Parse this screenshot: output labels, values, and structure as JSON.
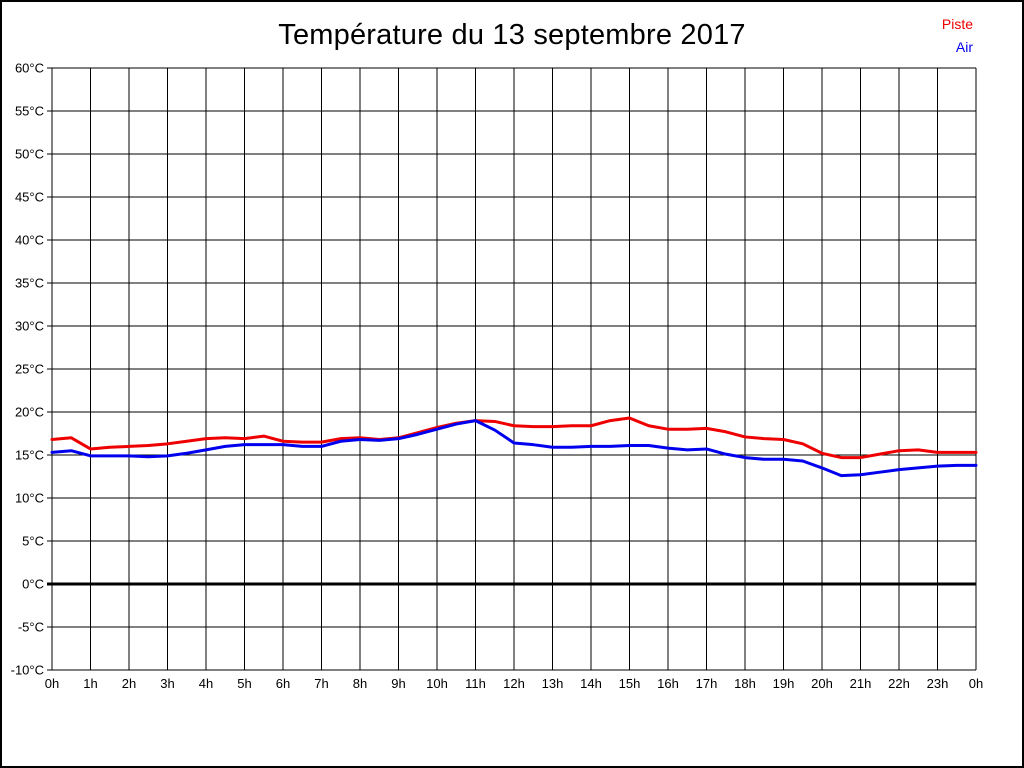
{
  "title": "Température du 13 septembre 2017",
  "legend": {
    "items": [
      {
        "label": "Piste",
        "color": "#ee0000"
      },
      {
        "label": "Air",
        "color": "#0000ee"
      }
    ],
    "position": "top-right"
  },
  "chart_data": {
    "type": "line",
    "title": "Température du 13 septembre 2017",
    "xlabel": "",
    "ylabel": "",
    "xlim": [
      0,
      24
    ],
    "ylim": [
      -10,
      60
    ],
    "x_step": 1,
    "y_step": 5,
    "grid": true,
    "zero_line_thick": true,
    "legend_position": "top-right",
    "x_tick_labels": [
      "0h",
      "1h",
      "2h",
      "3h",
      "4h",
      "5h",
      "6h",
      "7h",
      "8h",
      "9h",
      "10h",
      "11h",
      "12h",
      "13h",
      "14h",
      "15h",
      "16h",
      "17h",
      "18h",
      "19h",
      "20h",
      "21h",
      "22h",
      "23h",
      "0h"
    ],
    "y_tick_labels": [
      "60°C",
      "55°C",
      "50°C",
      "45°C",
      "40°C",
      "35°C",
      "30°C",
      "25°C",
      "20°C",
      "15°C",
      "10°C",
      "5°C",
      "0°C",
      "-5°C",
      "-10°C"
    ],
    "x": [
      0,
      0.5,
      1,
      1.5,
      2,
      2.5,
      3,
      3.5,
      4,
      4.5,
      5,
      5.5,
      6,
      6.5,
      7,
      7.5,
      8,
      8.5,
      9,
      9.5,
      10,
      10.5,
      11,
      11.5,
      12,
      12.5,
      13,
      13.5,
      14,
      14.5,
      15,
      15.5,
      16,
      16.5,
      17,
      17.5,
      18,
      18.5,
      19,
      19.5,
      20,
      20.5,
      21,
      21.5,
      22,
      22.5,
      23,
      23.5,
      24
    ],
    "series": [
      {
        "name": "Piste",
        "color": "#ee0000",
        "values": [
          16.8,
          17.0,
          15.7,
          15.9,
          16.0,
          16.1,
          16.3,
          16.6,
          16.9,
          17.0,
          16.9,
          17.2,
          16.6,
          16.5,
          16.5,
          16.9,
          17.0,
          16.8,
          17.0,
          17.6,
          18.2,
          18.7,
          19.0,
          18.9,
          18.4,
          18.3,
          18.3,
          18.4,
          18.4,
          19.0,
          19.3,
          18.4,
          18.0,
          18.0,
          18.1,
          17.7,
          17.1,
          16.9,
          16.8,
          16.3,
          15.2,
          14.7,
          14.7,
          15.1,
          15.5,
          15.6,
          15.3,
          15.3,
          15.3
        ]
      },
      {
        "name": "Air",
        "color": "#0000ee",
        "values": [
          15.3,
          15.5,
          14.9,
          14.9,
          14.9,
          14.8,
          14.9,
          15.2,
          15.6,
          16.0,
          16.2,
          16.2,
          16.2,
          16.0,
          16.0,
          16.6,
          16.8,
          16.7,
          16.9,
          17.4,
          18.0,
          18.6,
          19.0,
          17.9,
          16.4,
          16.2,
          15.9,
          15.9,
          16.0,
          16.0,
          16.1,
          16.1,
          15.8,
          15.6,
          15.7,
          15.1,
          14.7,
          14.5,
          14.5,
          14.3,
          13.5,
          12.6,
          12.7,
          13.0,
          13.3,
          13.5,
          13.7,
          13.8,
          13.8
        ]
      }
    ]
  }
}
